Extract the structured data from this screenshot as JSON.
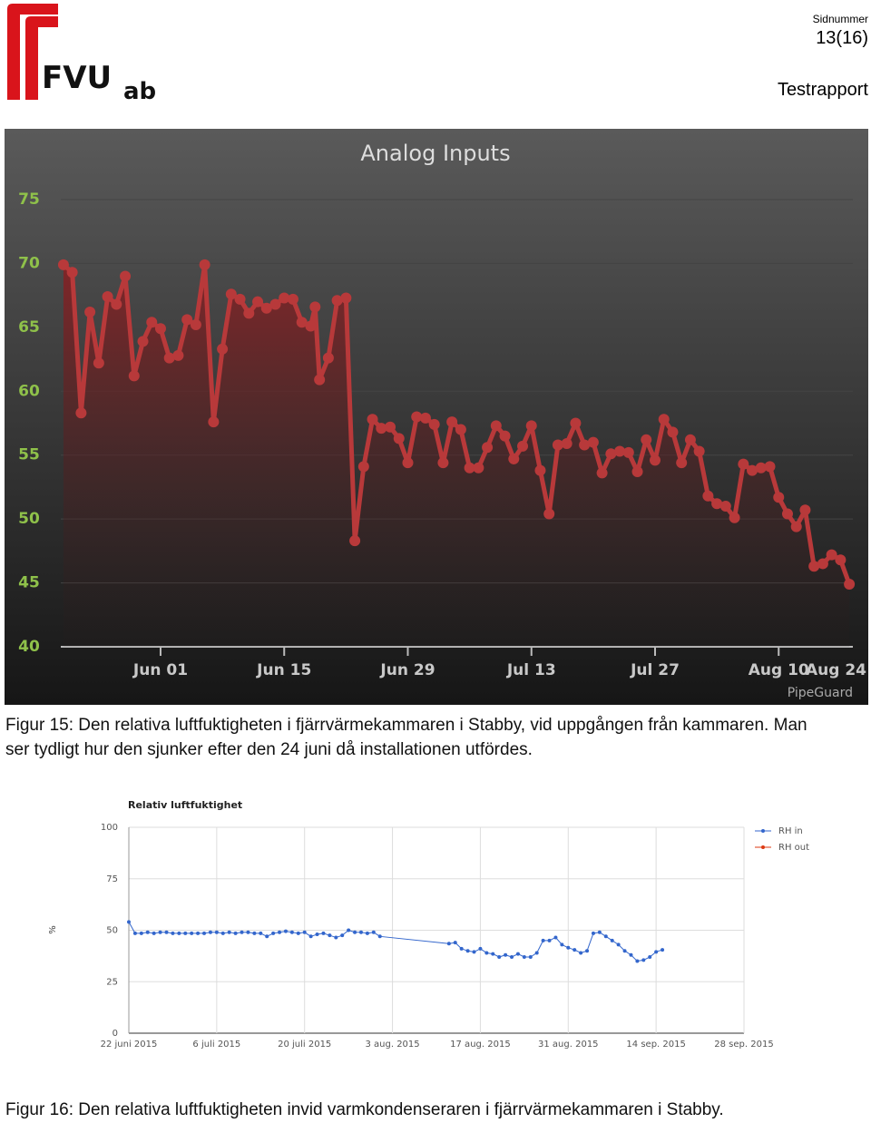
{
  "header": {
    "logo": "FVU",
    "logo_suffix": "ab",
    "page_label": "Sidnummer",
    "page_number": "13(16)",
    "doc_type": "Testrapport"
  },
  "chart_data": [
    {
      "type": "area",
      "title": "Analog Inputs",
      "credit": "PipeGuard",
      "color": "#b8393a",
      "grid": true,
      "x": [
        -11,
        -10,
        -9,
        -8,
        -7,
        -6,
        -5,
        -4,
        -3,
        -2,
        -1,
        0,
        1,
        2,
        3,
        4,
        5,
        6,
        7,
        8,
        9,
        10,
        11,
        12,
        13,
        14,
        15,
        16,
        17,
        17.5,
        18,
        19,
        20,
        21,
        22,
        23,
        24,
        25,
        26,
        27,
        28,
        29,
        30,
        31,
        32,
        33,
        34,
        35,
        36,
        37,
        38,
        39,
        40,
        41,
        42,
        43,
        44,
        45,
        46,
        47,
        48,
        49,
        50,
        51,
        52,
        53,
        54,
        55,
        56,
        57,
        58,
        59,
        60,
        61,
        62,
        63,
        64,
        65,
        66,
        67,
        68,
        69,
        70,
        71,
        72,
        73,
        74,
        75,
        76,
        77,
        78
      ],
      "values": [
        69.9,
        69.3,
        58.3,
        66.2,
        62.2,
        67.4,
        66.8,
        69.0,
        61.2,
        63.9,
        65.4,
        64.9,
        62.6,
        62.8,
        65.6,
        65.2,
        69.9,
        57.6,
        63.3,
        67.6,
        67.2,
        66.1,
        67.0,
        66.5,
        66.8,
        67.3,
        67.2,
        65.4,
        65.1,
        66.6,
        60.9,
        62.6,
        67.1,
        67.3,
        48.3,
        54.1,
        57.8,
        57.1,
        57.2,
        56.3,
        54.4,
        58.0,
        57.9,
        57.4,
        54.4,
        57.6,
        57.0,
        54.0,
        54.0,
        55.6,
        57.3,
        56.5,
        54.7,
        55.7,
        57.3,
        53.8,
        50.4,
        55.8,
        55.9,
        57.5,
        55.8,
        56.0,
        53.6,
        55.1,
        55.3,
        55.2,
        53.7,
        56.2,
        54.6,
        57.8,
        56.8,
        54.4,
        56.2,
        55.3,
        51.8,
        51.2,
        51.0,
        50.1,
        54.3,
        53.8,
        54.0,
        54.1,
        51.7,
        50.4,
        49.4,
        50.7,
        46.3,
        46.5,
        47.2,
        46.8,
        44.9
      ],
      "xlim": [
        -11.3,
        78.4
      ],
      "xticks": [
        {
          "value": 0,
          "label": "Jun 01"
        },
        {
          "value": 14,
          "label": "Jun 15"
        },
        {
          "value": 28,
          "label": "Jun 29"
        },
        {
          "value": 42,
          "label": "Jul 13"
        },
        {
          "value": 56,
          "label": "Jul 27"
        },
        {
          "value": 70,
          "label": "Aug 10"
        },
        {
          "value": 84,
          "label": "Aug 24"
        }
      ],
      "ylim": [
        40,
        75
      ],
      "yticks": [
        40,
        45,
        50,
        55,
        60,
        65,
        70,
        75
      ]
    },
    {
      "type": "line",
      "title": "Relativ luftfuktighet",
      "y_label": "%",
      "grid": true,
      "legend": "right",
      "x": [
        0,
        1,
        2,
        3,
        4,
        5,
        6,
        7,
        8,
        9,
        10,
        11,
        12,
        13,
        14,
        15,
        16,
        17,
        18,
        19,
        20,
        21,
        22,
        23,
        24,
        25,
        26,
        27,
        28,
        29,
        30,
        31,
        32,
        33,
        34,
        35,
        36,
        37,
        38,
        39,
        40,
        51,
        52,
        53,
        54,
        55,
        56,
        57,
        58,
        59,
        60,
        61,
        62,
        63,
        64,
        65,
        66,
        67,
        68,
        69,
        70,
        71,
        72,
        73,
        74,
        75,
        76,
        77,
        78,
        79,
        80,
        81,
        82,
        83,
        84,
        85
      ],
      "series": [
        {
          "name": "RH in",
          "color": "#3366cc",
          "values": [
            54,
            48.5,
            48.5,
            49,
            48.5,
            49,
            49,
            48.5,
            48.5,
            48.5,
            48.5,
            48.5,
            48.5,
            49,
            49,
            48.5,
            49,
            48.5,
            49,
            49,
            48.5,
            48.5,
            47,
            48.5,
            49,
            49.5,
            49,
            48.5,
            49,
            47,
            48,
            48.5,
            47.5,
            46.5,
            47.5,
            50,
            49,
            49,
            48.5,
            49,
            47,
            43.5,
            44,
            41,
            40,
            39.5,
            41,
            39,
            38.5,
            37,
            38,
            37,
            38.5,
            37,
            37,
            39,
            45,
            45,
            46.5,
            43,
            41.5,
            40.5,
            39,
            40,
            48.5,
            49,
            47,
            45,
            43,
            40,
            38,
            35,
            35.5,
            37,
            39.5,
            40.5
          ]
        },
        {
          "name": "RH out",
          "color": "#dc3912",
          "values": [
            null,
            null,
            null,
            null,
            null,
            null,
            null,
            null,
            null,
            null,
            null,
            null,
            null,
            null,
            null,
            null,
            null,
            null,
            null,
            null,
            null,
            null,
            null,
            null,
            null,
            null,
            null,
            null,
            null,
            null,
            null,
            null,
            null,
            null,
            null,
            null,
            null,
            null,
            null,
            null,
            null,
            null,
            null,
            null,
            null,
            null,
            null,
            null,
            null,
            null,
            null,
            null,
            null,
            null,
            null,
            null,
            null,
            null,
            null,
            null,
            null,
            null,
            null,
            null,
            null,
            null,
            null,
            null,
            null,
            null,
            null,
            null,
            null,
            null,
            null,
            null
          ]
        }
      ],
      "xlim": [
        0,
        98
      ],
      "xticks": [
        {
          "value": 0,
          "label": "22 juni 2015"
        },
        {
          "value": 14,
          "label": "6 juli 2015"
        },
        {
          "value": 28,
          "label": "20 juli 2015"
        },
        {
          "value": 42,
          "label": "3 aug. 2015"
        },
        {
          "value": 56,
          "label": "17 aug. 2015"
        },
        {
          "value": 70,
          "label": "31 aug. 2015"
        },
        {
          "value": 84,
          "label": "14 sep. 2015"
        },
        {
          "value": 98,
          "label": "28 sep. 2015"
        }
      ],
      "ylim": [
        0,
        100
      ],
      "yticks": [
        0,
        25,
        50,
        75,
        100
      ]
    }
  ],
  "captions": [
    "Figur 15: Den relativa luftfuktigheten i fjärrvärmekammaren i Stabby, vid uppgången från kammaren. Man ser tydligt hur den sjunker efter den 24 juni då installationen utfördes.",
    "Figur 16: Den relativa luftfuktigheten invid varmkondenseraren i fjärrvärmekammaren i Stabby."
  ]
}
